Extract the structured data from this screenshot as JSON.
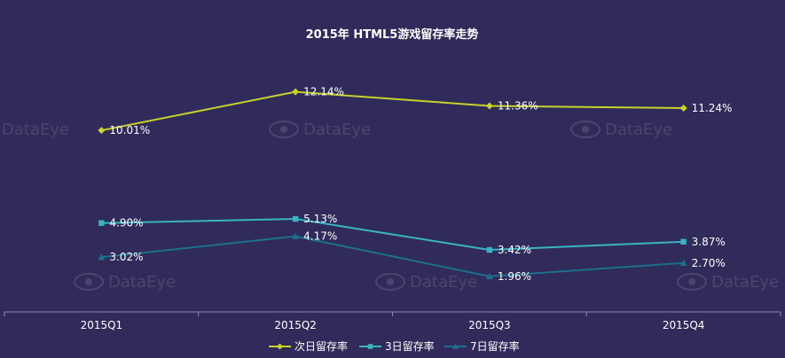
{
  "chart_data": {
    "type": "line",
    "title": "2015年 HTML5游戏留存率走势",
    "categories": [
      "2015Q1",
      "2015Q2",
      "2015Q3",
      "2015Q4"
    ],
    "series": [
      {
        "name": "次日留存率",
        "values": [
          10.01,
          12.14,
          11.36,
          11.24
        ],
        "labels": [
          "10.01%",
          "12.14%",
          "11.36%",
          "11.24%"
        ],
        "color": "#c8d22a",
        "marker": "diamond"
      },
      {
        "name": "3日留存率",
        "values": [
          4.9,
          5.13,
          3.42,
          3.87
        ],
        "labels": [
          "4.90%",
          "5.13%",
          "3.42%",
          "3.87%"
        ],
        "color": "#3ab4c2",
        "marker": "square"
      },
      {
        "name": "7日留存率",
        "values": [
          3.02,
          4.17,
          1.96,
          2.7
        ],
        "labels": [
          "3.02%",
          "4.17%",
          "1.96%",
          "2.70%"
        ],
        "color": "#1d6f8c",
        "marker": "triangle"
      }
    ],
    "ylim": [
      0,
      13
    ],
    "grid": false,
    "legend_position": "bottom-center",
    "watermark": "DataEye"
  }
}
